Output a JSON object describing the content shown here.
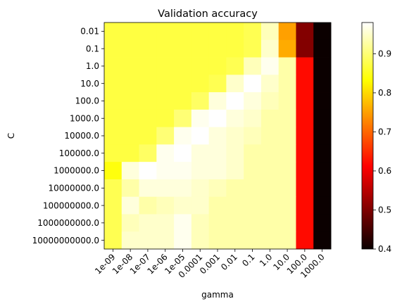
{
  "chart_data": {
    "type": "heatmap",
    "title": "Validation accuracy",
    "xlabel": "gamma",
    "ylabel": "C",
    "x_categories": [
      "1e-09",
      "1e-08",
      "1e-07",
      "1e-06",
      "1e-05",
      "0.0001",
      "0.001",
      "0.01",
      "0.1",
      "1.0",
      "10.0",
      "100.0",
      "1000.0"
    ],
    "y_categories": [
      "0.01",
      "0.1",
      "1.0",
      "10.0",
      "100.0",
      "1000.0",
      "10000.0",
      "100000.0",
      "1000000.0",
      "10000000.0",
      "100000000.0",
      "1000000000.0",
      "10000000000.0"
    ],
    "values": [
      [
        0.87,
        0.87,
        0.87,
        0.87,
        0.87,
        0.87,
        0.87,
        0.87,
        0.88,
        0.94,
        0.75,
        0.5,
        0.4
      ],
      [
        0.87,
        0.87,
        0.87,
        0.87,
        0.87,
        0.87,
        0.87,
        0.87,
        0.88,
        0.95,
        0.76,
        0.5,
        0.4
      ],
      [
        0.87,
        0.87,
        0.87,
        0.87,
        0.87,
        0.87,
        0.87,
        0.88,
        0.94,
        0.97,
        0.93,
        0.62,
        0.4
      ],
      [
        0.87,
        0.87,
        0.87,
        0.87,
        0.87,
        0.87,
        0.88,
        0.95,
        0.98,
        0.95,
        0.93,
        0.62,
        0.4
      ],
      [
        0.87,
        0.87,
        0.87,
        0.87,
        0.87,
        0.89,
        0.96,
        0.98,
        0.96,
        0.94,
        0.93,
        0.62,
        0.4
      ],
      [
        0.87,
        0.87,
        0.87,
        0.87,
        0.9,
        0.97,
        0.98,
        0.96,
        0.95,
        0.93,
        0.93,
        0.62,
        0.4
      ],
      [
        0.87,
        0.87,
        0.87,
        0.9,
        0.97,
        0.98,
        0.96,
        0.95,
        0.94,
        0.93,
        0.93,
        0.62,
        0.4
      ],
      [
        0.87,
        0.87,
        0.89,
        0.97,
        0.98,
        0.96,
        0.96,
        0.95,
        0.93,
        0.93,
        0.93,
        0.62,
        0.4
      ],
      [
        0.84,
        0.96,
        0.98,
        0.97,
        0.97,
        0.96,
        0.96,
        0.95,
        0.93,
        0.93,
        0.93,
        0.62,
        0.4
      ],
      [
        0.88,
        0.93,
        0.96,
        0.96,
        0.96,
        0.95,
        0.94,
        0.93,
        0.93,
        0.93,
        0.93,
        0.62,
        0.4
      ],
      [
        0.88,
        0.96,
        0.93,
        0.94,
        0.95,
        0.95,
        0.93,
        0.93,
        0.93,
        0.93,
        0.93,
        0.62,
        0.4
      ],
      [
        0.88,
        0.94,
        0.95,
        0.95,
        0.97,
        0.94,
        0.93,
        0.93,
        0.93,
        0.93,
        0.93,
        0.62,
        0.4
      ],
      [
        0.88,
        0.95,
        0.95,
        0.95,
        0.97,
        0.94,
        0.93,
        0.93,
        0.93,
        0.93,
        0.93,
        0.62,
        0.4
      ]
    ],
    "colormap": "hot",
    "colorbar": {
      "vmin": 0.4,
      "vmax": 0.98,
      "ticks": [
        "0.4",
        "0.5",
        "0.6",
        "0.7",
        "0.8",
        "0.9"
      ]
    },
    "grid": false
  }
}
